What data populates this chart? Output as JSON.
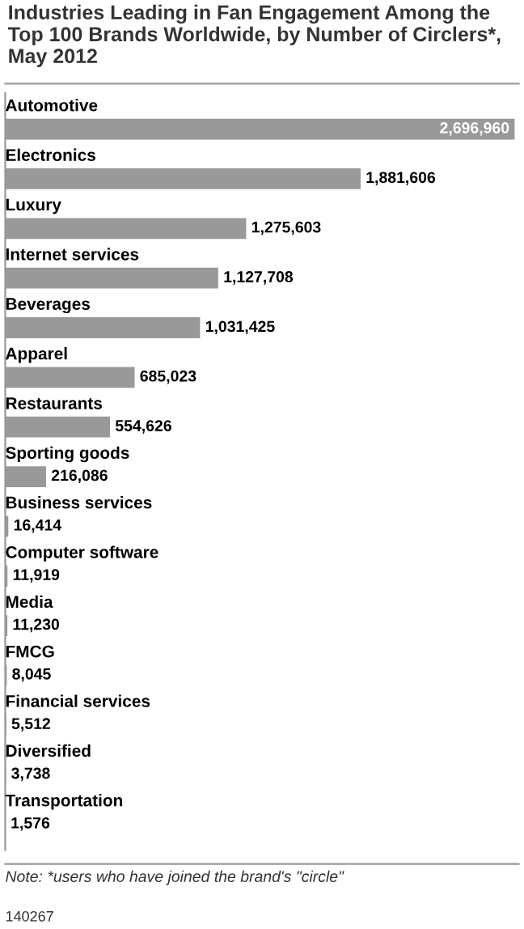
{
  "chart_data": {
    "type": "bar",
    "orientation": "horizontal",
    "title": "Industries Leading in Fan Engagement Among the Top 100 Brands Worldwide, by Number of Circlers*, May 2012",
    "categories": [
      "Automotive",
      "Electronics",
      "Luxury",
      "Internet services",
      "Beverages",
      "Apparel",
      "Restaurants",
      "Sporting goods",
      "Business services",
      "Computer software",
      "Media",
      "FMCG",
      "Financial services",
      "Diversified",
      "Transportation"
    ],
    "values": [
      2696960,
      1881606,
      1275603,
      1127708,
      1031425,
      685023,
      554626,
      216086,
      16414,
      11919,
      11230,
      8045,
      5512,
      3738,
      1576
    ],
    "value_labels": [
      "2,696,960",
      "1,881,606",
      "1,275,603",
      "1,127,708",
      "1,031,425",
      "685,023",
      "554,626",
      "216,086",
      "16,414",
      "11,919",
      "11,230",
      "8,045",
      "5,512",
      "3,738",
      "1,576"
    ],
    "color": "#999999",
    "legend": false,
    "annotations": [
      "Note: *users who have joined the brand's \"circle\"",
      "140267"
    ]
  }
}
